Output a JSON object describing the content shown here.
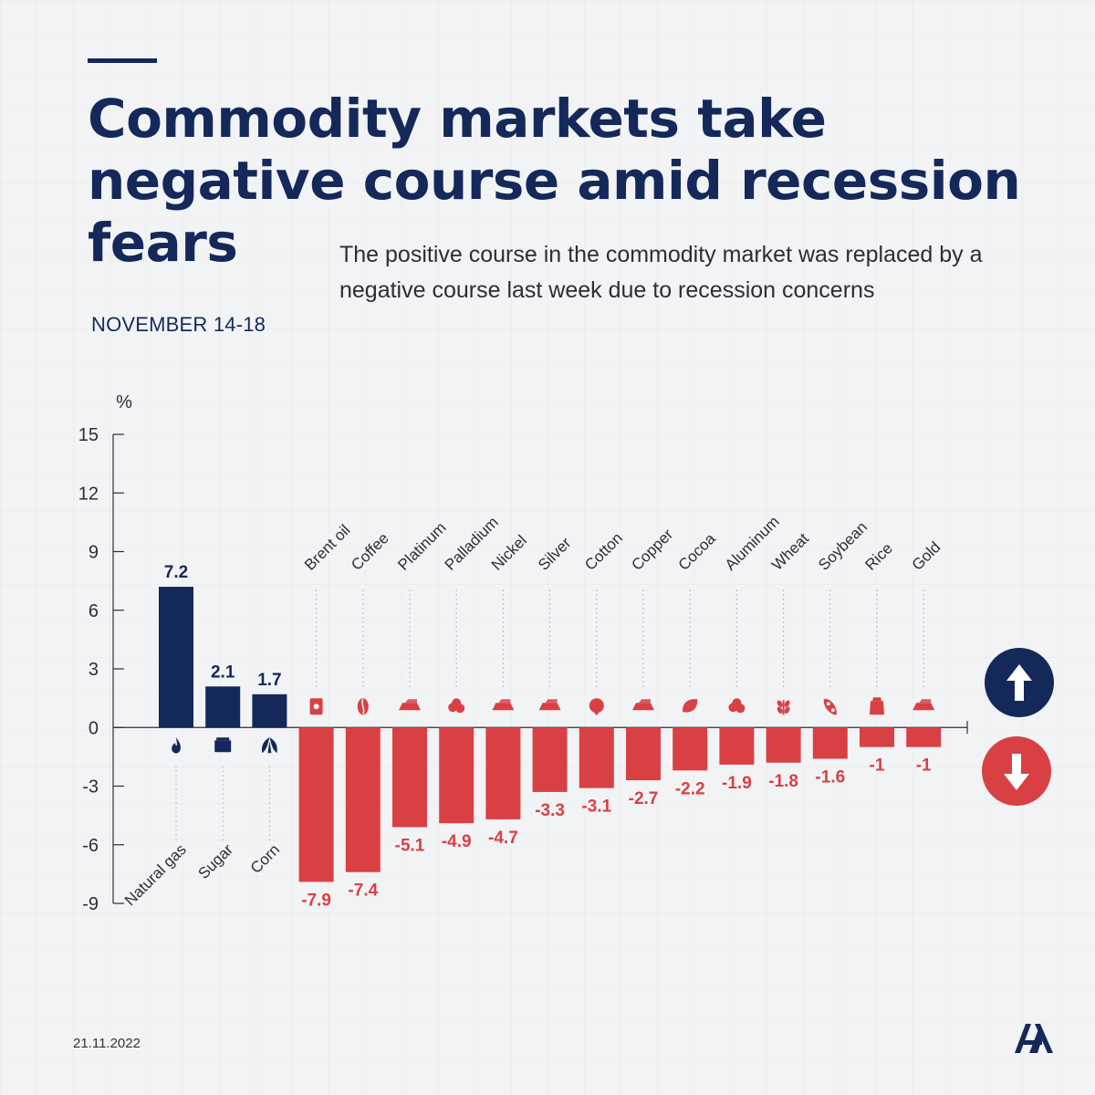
{
  "header": {
    "title_lines": [
      "Commodity markets take",
      "negative course amid recession",
      "fears"
    ],
    "subtitle": "The positive course in the commodity market was replaced by a negative course last week due to recession concerns",
    "date_range": "NOVEMBER 14-18"
  },
  "footer": {
    "date": "21.11.2022",
    "logo_text": "AA"
  },
  "colors": {
    "navy": "#14295a",
    "red": "#d94044",
    "text": "#2d2d35"
  },
  "chart_data": {
    "type": "bar",
    "title": "Commodity markets take negative course amid recession fears",
    "ylabel": "%",
    "ylim": [
      -9,
      15
    ],
    "yticks": [
      15,
      12,
      9,
      6,
      3,
      0,
      -3,
      -6,
      -9
    ],
    "categories": [
      "Natural gas",
      "Sugar",
      "Corn",
      "Brent oil",
      "Coffee",
      "Platinum",
      "Palladium",
      "Nickel",
      "Silver",
      "Cotton",
      "Copper",
      "Cocoa",
      "Aluminum",
      "Wheat",
      "Soybean",
      "Rice",
      "Gold"
    ],
    "values": [
      7.2,
      2.1,
      1.7,
      -7.9,
      -7.4,
      -5.1,
      -4.9,
      -4.7,
      -3.3,
      -3.1,
      -2.7,
      -2.2,
      -1.9,
      -1.8,
      -1.6,
      -1,
      -1
    ],
    "value_labels": [
      "7.2",
      "2.1",
      "1.7",
      "-7.9",
      "-7.4",
      "-5.1",
      "-4.9",
      "-4.7",
      "-3.3",
      "-3.1",
      "-2.7",
      "-2.2",
      "-1.9",
      "-1.8",
      "-1.6",
      "-1",
      "-1"
    ],
    "icons": [
      "flame-icon",
      "sugar-bag-icon",
      "corn-leaf-icon",
      "oil-barrel-icon",
      "coffee-bean-icon",
      "metal-ingot-icon",
      "metal-nugget-icon",
      "metal-ingot-icon",
      "metal-ingot-icon",
      "cotton-boll-icon",
      "metal-ingot-icon",
      "cocoa-leaf-icon",
      "metal-nugget-icon",
      "wheat-icon",
      "soybean-icon",
      "rice-sack-icon",
      "metal-ingot-icon"
    ],
    "legend": [
      {
        "name": "increase",
        "icon": "up-arrow-icon",
        "color": "#14295a"
      },
      {
        "name": "decrease",
        "icon": "down-arrow-icon",
        "color": "#d94044"
      }
    ]
  }
}
